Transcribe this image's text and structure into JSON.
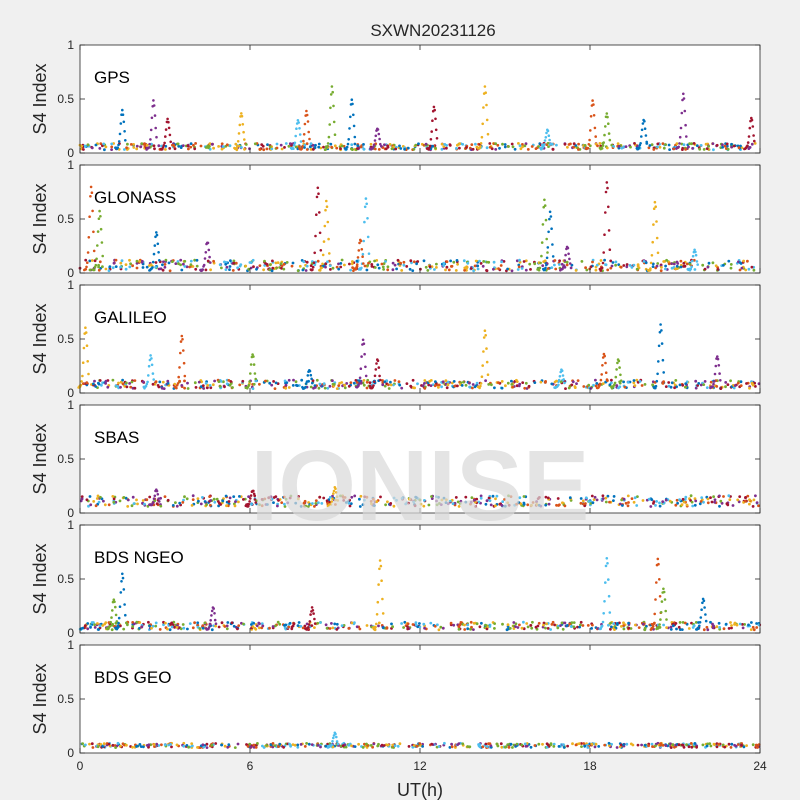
{
  "chart_data": {
    "type": "scatter",
    "title": "SXWN20231126",
    "xlabel": "UT(h)",
    "ylabel": "S4 Index",
    "xlim": [
      0,
      24
    ],
    "ylim": [
      0,
      1
    ],
    "xticks": [
      "0",
      "6",
      "12",
      "18",
      "24"
    ],
    "yticks": [
      "0",
      "0.5",
      "1"
    ],
    "grid": false,
    "watermark": "IONISE",
    "series_colors": [
      "#0072BD",
      "#D95319",
      "#EDB120",
      "#7E2F8E",
      "#77AC30",
      "#4DBEEE",
      "#A2142F"
    ],
    "panels": [
      {
        "label": "GPS",
        "baseline": [
          0.03,
          0.09
        ],
        "spikes": [
          {
            "x": 1.5,
            "y": 0.38
          },
          {
            "x": 2.6,
            "y": 0.47
          },
          {
            "x": 3.1,
            "y": 0.3
          },
          {
            "x": 5.7,
            "y": 0.36
          },
          {
            "x": 7.7,
            "y": 0.3
          },
          {
            "x": 8.0,
            "y": 0.37
          },
          {
            "x": 8.9,
            "y": 0.6
          },
          {
            "x": 9.6,
            "y": 0.48
          },
          {
            "x": 10.5,
            "y": 0.22
          },
          {
            "x": 12.5,
            "y": 0.42
          },
          {
            "x": 14.3,
            "y": 0.6
          },
          {
            "x": 16.5,
            "y": 0.2
          },
          {
            "x": 18.1,
            "y": 0.47
          },
          {
            "x": 18.6,
            "y": 0.35
          },
          {
            "x": 19.9,
            "y": 0.3
          },
          {
            "x": 21.3,
            "y": 0.53
          },
          {
            "x": 23.7,
            "y": 0.31
          }
        ]
      },
      {
        "label": "GLONASS",
        "baseline": [
          0.02,
          0.12
        ],
        "spikes": [
          {
            "x": 0.4,
            "y": 0.78
          },
          {
            "x": 0.7,
            "y": 0.56
          },
          {
            "x": 2.7,
            "y": 0.36
          },
          {
            "x": 4.5,
            "y": 0.28
          },
          {
            "x": 8.4,
            "y": 0.78
          },
          {
            "x": 8.7,
            "y": 0.65
          },
          {
            "x": 10.1,
            "y": 0.68
          },
          {
            "x": 9.9,
            "y": 0.3
          },
          {
            "x": 16.4,
            "y": 0.66
          },
          {
            "x": 16.6,
            "y": 0.55
          },
          {
            "x": 17.2,
            "y": 0.23
          },
          {
            "x": 18.6,
            "y": 0.83
          },
          {
            "x": 20.3,
            "y": 0.65
          },
          {
            "x": 21.7,
            "y": 0.2
          }
        ]
      },
      {
        "label": "GALILEO",
        "baseline": [
          0.04,
          0.12
        ],
        "spikes": [
          {
            "x": 0.2,
            "y": 0.6
          },
          {
            "x": 2.5,
            "y": 0.33
          },
          {
            "x": 3.6,
            "y": 0.52
          },
          {
            "x": 6.1,
            "y": 0.35
          },
          {
            "x": 8.1,
            "y": 0.2
          },
          {
            "x": 10.0,
            "y": 0.48
          },
          {
            "x": 10.5,
            "y": 0.3
          },
          {
            "x": 14.3,
            "y": 0.56
          },
          {
            "x": 17.0,
            "y": 0.2
          },
          {
            "x": 18.5,
            "y": 0.35
          },
          {
            "x": 19.0,
            "y": 0.3
          },
          {
            "x": 20.5,
            "y": 0.62
          },
          {
            "x": 22.5,
            "y": 0.33
          }
        ]
      },
      {
        "label": "SBAS",
        "baseline": [
          0.06,
          0.16
        ],
        "spikes": [
          {
            "x": 2.7,
            "y": 0.2
          },
          {
            "x": 6.1,
            "y": 0.2
          },
          {
            "x": 9.0,
            "y": 0.22
          }
        ]
      },
      {
        "label": "BDS NGEO",
        "baseline": [
          0.03,
          0.1
        ],
        "spikes": [
          {
            "x": 1.2,
            "y": 0.3
          },
          {
            "x": 1.5,
            "y": 0.53
          },
          {
            "x": 4.7,
            "y": 0.22
          },
          {
            "x": 8.2,
            "y": 0.22
          },
          {
            "x": 10.6,
            "y": 0.66
          },
          {
            "x": 18.6,
            "y": 0.68
          },
          {
            "x": 20.4,
            "y": 0.68
          },
          {
            "x": 20.6,
            "y": 0.4
          },
          {
            "x": 22.0,
            "y": 0.3
          }
        ]
      },
      {
        "label": "BDS GEO",
        "baseline": [
          0.05,
          0.09
        ],
        "spikes": [
          {
            "x": 9.0,
            "y": 0.17
          }
        ]
      }
    ]
  }
}
